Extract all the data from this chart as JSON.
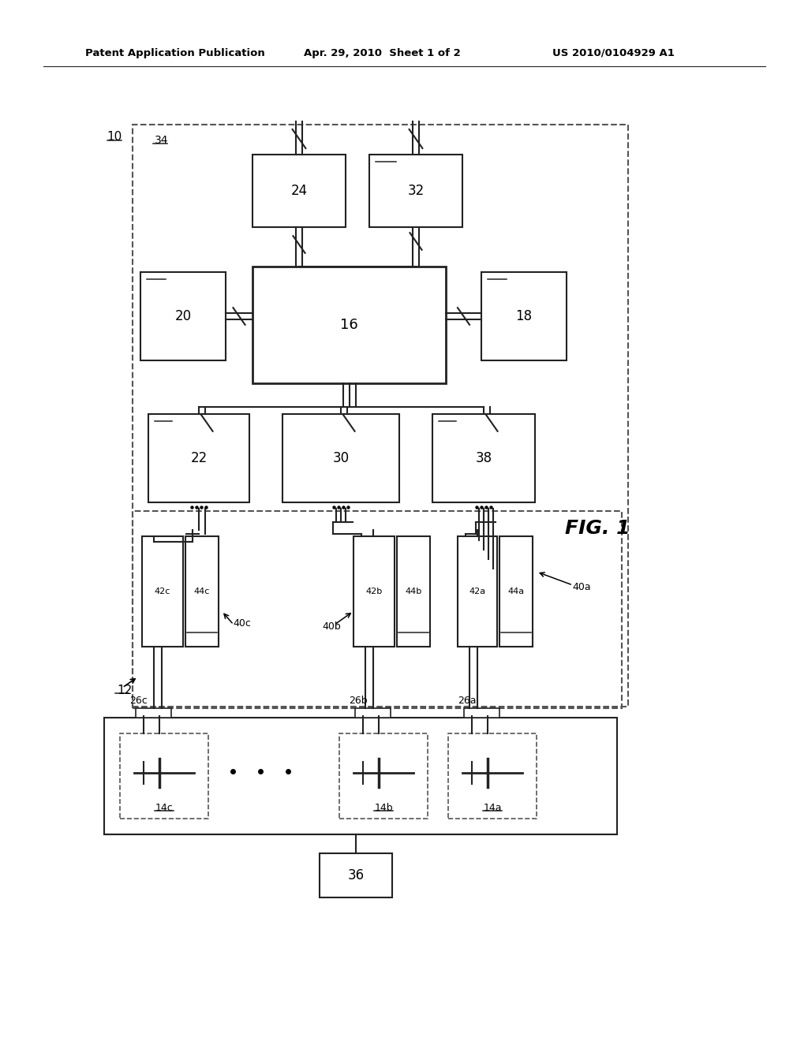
{
  "header_left": "Patent Application Publication",
  "header_mid": "Apr. 29, 2010  Sheet 1 of 2",
  "header_right": "US 2010/0104929 A1",
  "fig_label": "FIG. 1",
  "bg": "#ffffff",
  "line_color": "#222222"
}
